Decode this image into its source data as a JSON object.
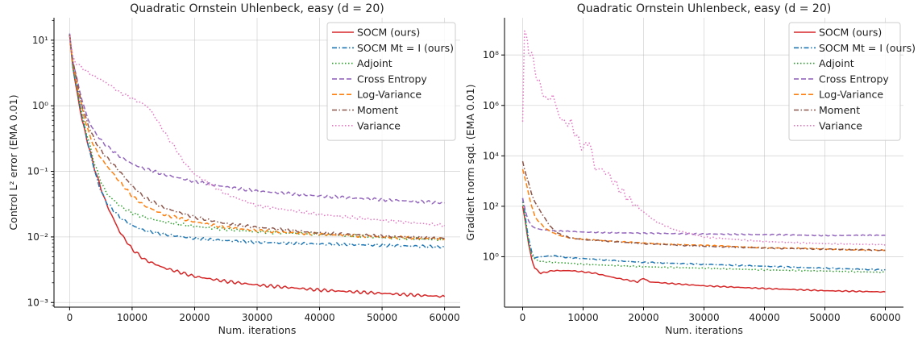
{
  "chart_data": [
    {
      "type": "line",
      "title": "Quadratic Ornstein Uhlenbeck, easy (d = 20)",
      "xlabel": "Num. iterations",
      "ylabel": "Control L² error (EMA 0.01)",
      "yscale": "log",
      "xlim": [
        -2500,
        62500
      ],
      "ylim": [
        0.00085,
        22
      ],
      "x_ticks": [
        "0",
        "10000",
        "20000",
        "30000",
        "40000",
        "50000",
        "60000"
      ],
      "y_ticks": [
        "10⁻³",
        "10⁻²",
        "10⁻¹",
        "10⁰",
        "10¹"
      ],
      "grid": true,
      "legend": "top-right",
      "series": [
        {
          "name": "SOCM (ours)",
          "color": "#d62728",
          "dash": "solid",
          "x": [
            0,
            500,
            1000,
            2000,
            3000,
            4000,
            5000,
            6000,
            8000,
            10000,
            12000,
            15000,
            20000,
            25000,
            30000,
            40000,
            50000,
            60000
          ],
          "y": [
            12,
            4.0,
            2.0,
            0.6,
            0.25,
            0.11,
            0.055,
            0.03,
            0.012,
            0.0065,
            0.0045,
            0.0034,
            0.0025,
            0.0021,
            0.00185,
            0.00155,
            0.00138,
            0.00123
          ]
        },
        {
          "name": "SOCM Mt = I (ours)",
          "color": "#1f77b4",
          "dash": "dashdot",
          "x": [
            0,
            500,
            1000,
            2000,
            3000,
            4000,
            5000,
            6000,
            8000,
            10000,
            12000,
            15000,
            20000,
            25000,
            30000,
            40000,
            50000,
            60000
          ],
          "y": [
            12,
            4.0,
            2.2,
            0.7,
            0.25,
            0.1,
            0.05,
            0.033,
            0.02,
            0.015,
            0.0125,
            0.011,
            0.0095,
            0.0088,
            0.0083,
            0.0078,
            0.0075,
            0.007
          ]
        },
        {
          "name": "Adjoint",
          "color": "#2ca02c",
          "dash": "dotted",
          "x": [
            0,
            500,
            1000,
            2000,
            3000,
            4000,
            5000,
            6000,
            8000,
            10000,
            12000,
            15000,
            20000,
            25000,
            30000,
            40000,
            50000,
            60000
          ],
          "y": [
            12,
            4.0,
            2.2,
            0.7,
            0.3,
            0.13,
            0.07,
            0.045,
            0.03,
            0.023,
            0.02,
            0.017,
            0.0145,
            0.013,
            0.012,
            0.011,
            0.0098,
            0.009
          ]
        },
        {
          "name": "Cross Entropy",
          "color": "#9467bd",
          "dash": "dashed",
          "x": [
            0,
            500,
            1000,
            2000,
            3000,
            4000,
            5000,
            6000,
            8000,
            10000,
            12000,
            15000,
            20000,
            25000,
            30000,
            40000,
            50000,
            60000
          ],
          "y": [
            12,
            5.0,
            3.0,
            1.2,
            0.6,
            0.4,
            0.3,
            0.24,
            0.17,
            0.13,
            0.11,
            0.09,
            0.07,
            0.058,
            0.05,
            0.042,
            0.037,
            0.033
          ]
        },
        {
          "name": "Log-Variance",
          "color": "#ff7f0e",
          "dash": "dashed",
          "x": [
            0,
            500,
            1000,
            2000,
            3000,
            4000,
            5000,
            6000,
            8000,
            10000,
            12000,
            15000,
            20000,
            25000,
            30000,
            40000,
            50000,
            60000
          ],
          "y": [
            12,
            4.5,
            2.5,
            0.9,
            0.4,
            0.23,
            0.16,
            0.12,
            0.07,
            0.042,
            0.03,
            0.022,
            0.017,
            0.014,
            0.0125,
            0.011,
            0.01,
            0.0093
          ]
        },
        {
          "name": "Moment",
          "color": "#8c564b",
          "dash": "dashdot",
          "x": [
            0,
            500,
            1000,
            2000,
            3000,
            4000,
            5000,
            6000,
            8000,
            10000,
            12000,
            15000,
            20000,
            25000,
            30000,
            40000,
            50000,
            60000
          ],
          "y": [
            12,
            5.0,
            2.8,
            1.0,
            0.5,
            0.3,
            0.21,
            0.16,
            0.1,
            0.06,
            0.04,
            0.028,
            0.02,
            0.016,
            0.014,
            0.0115,
            0.0103,
            0.0095
          ]
        },
        {
          "name": "Variance",
          "color": "#e377c2",
          "dash": "dotted",
          "x": [
            0,
            500,
            1000,
            2000,
            3000,
            4000,
            5000,
            6000,
            7000,
            8000,
            9000,
            10000,
            11000,
            12000,
            13000,
            14000,
            15000,
            16000,
            17000,
            18000,
            20000,
            25000,
            30000,
            40000,
            50000,
            60000
          ],
          "y": [
            12,
            5.5,
            4.5,
            3.8,
            3.2,
            2.8,
            2.5,
            2.2,
            1.9,
            1.6,
            1.45,
            1.3,
            1.15,
            1.05,
            0.85,
            0.6,
            0.42,
            0.3,
            0.22,
            0.15,
            0.09,
            0.045,
            0.03,
            0.022,
            0.018,
            0.015
          ]
        }
      ]
    },
    {
      "type": "line",
      "title": "Quadratic Ornstein Uhlenbeck, easy (d = 20)",
      "xlabel": "Num. iterations",
      "ylabel": "Gradient norm sqd. (EMA 0.01)",
      "yscale": "log",
      "xlim": [
        -3000,
        63000
      ],
      "ylim": [
        0.01,
        3000000000.0
      ],
      "x_ticks": [
        "0",
        "10000",
        "20000",
        "30000",
        "40000",
        "50000",
        "60000"
      ],
      "y_ticks": [
        "10⁰",
        "10²",
        "10⁴",
        "10⁶",
        "10⁸"
      ],
      "grid": true,
      "legend": "top-right",
      "series": [
        {
          "name": "SOCM (ours)",
          "color": "#d62728",
          "dash": "solid",
          "x": [
            0,
            500,
            1000,
            1500,
            2000,
            3000,
            5000,
            8000,
            10000,
            12000,
            15000,
            19000,
            20000,
            21000,
            25000,
            30000,
            40000,
            50000,
            60000
          ],
          "y": [
            100,
            20,
            3,
            0.8,
            0.35,
            0.22,
            0.28,
            0.28,
            0.25,
            0.22,
            0.15,
            0.1,
            0.14,
            0.1,
            0.085,
            0.07,
            0.055,
            0.045,
            0.04
          ]
        },
        {
          "name": "SOCM Mt = I (ours)",
          "color": "#1f77b4",
          "dash": "dashdot",
          "x": [
            0,
            500,
            1000,
            1500,
            2000,
            3000,
            5000,
            8000,
            10000,
            15000,
            20000,
            30000,
            40000,
            50000,
            60000
          ],
          "y": [
            200,
            30,
            5,
            1.5,
            0.9,
            1.0,
            1.1,
            0.9,
            0.85,
            0.7,
            0.6,
            0.5,
            0.42,
            0.35,
            0.3
          ]
        },
        {
          "name": "Adjoint",
          "color": "#2ca02c",
          "dash": "dotted",
          "x": [
            0,
            500,
            1000,
            1500,
            2000,
            3000,
            5000,
            8000,
            10000,
            15000,
            20000,
            30000,
            40000,
            50000,
            60000
          ],
          "y": [
            150,
            20,
            3,
            1.2,
            0.8,
            0.65,
            0.6,
            0.55,
            0.5,
            0.45,
            0.4,
            0.35,
            0.3,
            0.27,
            0.24
          ]
        },
        {
          "name": "Cross Entropy",
          "color": "#9467bd",
          "dash": "dashed",
          "x": [
            0,
            500,
            1000,
            1500,
            2000,
            3000,
            5000,
            8000,
            10000,
            15000,
            20000,
            30000,
            40000,
            50000,
            60000
          ],
          "y": [
            200,
            60,
            25,
            17,
            14,
            12,
            10.5,
            10,
            9.5,
            9,
            8.5,
            8,
            7.5,
            7,
            7
          ]
        },
        {
          "name": "Log-Variance",
          "color": "#ff7f0e",
          "dash": "dashed",
          "x": [
            0,
            500,
            1000,
            1500,
            2000,
            3000,
            4000,
            5000,
            6000,
            8000,
            10000,
            15000,
            20000,
            30000,
            40000,
            50000,
            60000
          ],
          "y": [
            3000,
            1000,
            300,
            100,
            40,
            20,
            12,
            9,
            7,
            5.5,
            5,
            4,
            3.5,
            2.8,
            2.3,
            2,
            1.8
          ]
        },
        {
          "name": "Moment",
          "color": "#8c564b",
          "dash": "dashdot",
          "x": [
            0,
            500,
            1000,
            1500,
            2000,
            3000,
            4000,
            5000,
            6000,
            8000,
            10000,
            15000,
            20000,
            30000,
            40000,
            50000,
            60000
          ],
          "y": [
            6000,
            2000,
            800,
            300,
            150,
            60,
            25,
            12,
            8,
            5.5,
            4.8,
            4,
            3.3,
            2.6,
            2.2,
            2,
            1.8
          ]
        },
        {
          "name": "Variance",
          "color": "#e377c2",
          "dash": "dotted",
          "x": [
            0,
            300,
            600,
            1000,
            1500,
            2000,
            2500,
            3000,
            4000,
            5000,
            6000,
            7000,
            8000,
            9000,
            10000,
            11000,
            12000,
            13000,
            14000,
            15000,
            16000,
            18000,
            20000,
            22000,
            25000,
            30000,
            40000,
            50000,
            60000
          ],
          "y": [
            300000,
            1000000000,
            500000000,
            150000000,
            100000000,
            30000000,
            10000000,
            5000000,
            1500000,
            2500000,
            400000,
            200000,
            200000,
            50000,
            20000,
            40000,
            3000,
            3000,
            2000,
            1000,
            500,
            150,
            60,
            25,
            12,
            6,
            4,
            3.3,
            3
          ]
        }
      ]
    }
  ]
}
